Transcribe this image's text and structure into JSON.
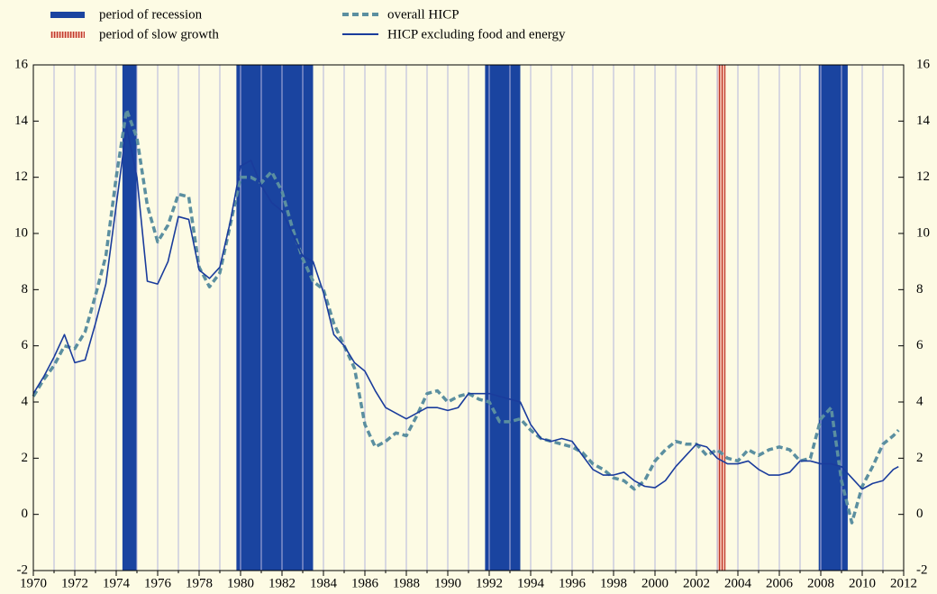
{
  "chart_data": {
    "type": "line",
    "legend": {
      "recession": "period of recession",
      "slow_growth": "period of slow growth"
    },
    "recession_periods": [
      [
        1974.3,
        1975.0
      ],
      [
        1979.8,
        1983.5
      ],
      [
        1991.8,
        1993.5
      ],
      [
        2007.9,
        2009.3
      ]
    ],
    "recession_color": "#1a44a0",
    "slow_growth_periods": [
      [
        2003.0,
        2003.4
      ]
    ],
    "slow_growth_color": "#e8a090",
    "x": [
      1970.0,
      1970.5,
      1971.0,
      1971.5,
      1972.0,
      1972.5,
      1973.0,
      1973.5,
      1974.0,
      1974.5,
      1975.0,
      1975.5,
      1976.0,
      1976.5,
      1977.0,
      1977.5,
      1978.0,
      1978.5,
      1979.0,
      1979.5,
      1980.0,
      1980.5,
      1981.0,
      1981.5,
      1982.0,
      1982.5,
      1983.0,
      1983.5,
      1984.0,
      1984.5,
      1985.0,
      1985.5,
      1986.0,
      1986.5,
      1987.0,
      1987.5,
      1988.0,
      1988.5,
      1989.0,
      1989.5,
      1990.0,
      1990.5,
      1991.0,
      1991.5,
      1992.0,
      1992.5,
      1993.0,
      1993.5,
      1994.0,
      1994.5,
      1995.0,
      1995.5,
      1996.0,
      1996.5,
      1997.0,
      1997.5,
      1998.0,
      1998.5,
      1999.0,
      1999.5,
      2000.0,
      2000.5,
      2001.0,
      2001.5,
      2002.0,
      2002.5,
      2003.0,
      2003.5,
      2004.0,
      2004.5,
      2005.0,
      2005.5,
      2006.0,
      2006.5,
      2007.0,
      2007.5,
      2008.0,
      2008.5,
      2009.0,
      2009.5,
      2010.0,
      2010.5,
      2011.0,
      2011.5,
      2011.75
    ],
    "series": [
      {
        "name": "overall HICP",
        "color": "#5b8fa0",
        "dashed": true,
        "values": [
          4.2,
          4.8,
          5.3,
          6.0,
          5.9,
          6.5,
          7.8,
          9.2,
          12.0,
          14.4,
          13.4,
          11.0,
          9.7,
          10.3,
          11.4,
          11.3,
          8.8,
          8.1,
          8.6,
          10.3,
          12.0,
          12.0,
          11.8,
          12.2,
          11.5,
          10.2,
          9.1,
          8.3,
          8.0,
          6.8,
          6.0,
          5.2,
          3.2,
          2.4,
          2.6,
          2.9,
          2.8,
          3.5,
          4.3,
          4.4,
          4.0,
          4.2,
          4.3,
          4.1,
          4.0,
          3.3,
          3.3,
          3.4,
          3.0,
          2.7,
          2.6,
          2.5,
          2.4,
          2.2,
          1.8,
          1.6,
          1.3,
          1.2,
          0.9,
          1.2,
          1.9,
          2.3,
          2.6,
          2.5,
          2.5,
          2.1,
          2.3,
          2.0,
          1.9,
          2.3,
          2.1,
          2.3,
          2.4,
          2.3,
          1.9,
          2.0,
          3.4,
          3.8,
          1.2,
          -0.3,
          1.0,
          1.7,
          2.5,
          2.8,
          3.0
        ]
      },
      {
        "name": "HICP excluding food and energy",
        "color": "#1a3c9c",
        "dashed": false,
        "values": [
          4.3,
          4.9,
          5.6,
          6.4,
          5.4,
          5.5,
          6.8,
          8.2,
          11.0,
          13.8,
          12.0,
          8.3,
          8.2,
          9.0,
          10.6,
          10.5,
          8.7,
          8.4,
          8.8,
          10.4,
          12.4,
          12.6,
          11.7,
          11.1,
          10.8,
          10.0,
          9.2,
          9.0,
          7.9,
          6.4,
          6.0,
          5.4,
          5.1,
          4.4,
          3.8,
          3.6,
          3.4,
          3.6,
          3.8,
          3.8,
          3.7,
          3.8,
          4.3,
          4.3,
          4.3,
          4.2,
          4.1,
          4.0,
          3.2,
          2.7,
          2.6,
          2.7,
          2.6,
          2.1,
          1.6,
          1.4,
          1.4,
          1.5,
          1.2,
          1.0,
          0.95,
          1.2,
          1.7,
          2.1,
          2.5,
          2.4,
          2.0,
          1.8,
          1.8,
          1.9,
          1.6,
          1.4,
          1.4,
          1.5,
          1.9,
          1.9,
          1.8,
          1.8,
          1.7,
          1.3,
          0.9,
          1.1,
          1.2,
          1.6,
          1.7
        ]
      }
    ],
    "xlim": [
      1970,
      2012
    ],
    "xticks": [
      1970,
      1972,
      1974,
      1976,
      1978,
      1980,
      1982,
      1984,
      1986,
      1988,
      1990,
      1992,
      1994,
      1996,
      1998,
      2000,
      2002,
      2004,
      2006,
      2008,
      2010,
      2012
    ],
    "ylim": [
      -2,
      16
    ],
    "yticks": [
      -2,
      0,
      2,
      4,
      6,
      8,
      10,
      12,
      14,
      16
    ],
    "y2lim": [
      -2,
      16
    ],
    "y2ticks": [
      -2,
      0,
      2,
      4,
      6,
      8,
      10,
      12,
      14,
      16
    ],
    "grid": true,
    "background": "#fdfbe4"
  }
}
